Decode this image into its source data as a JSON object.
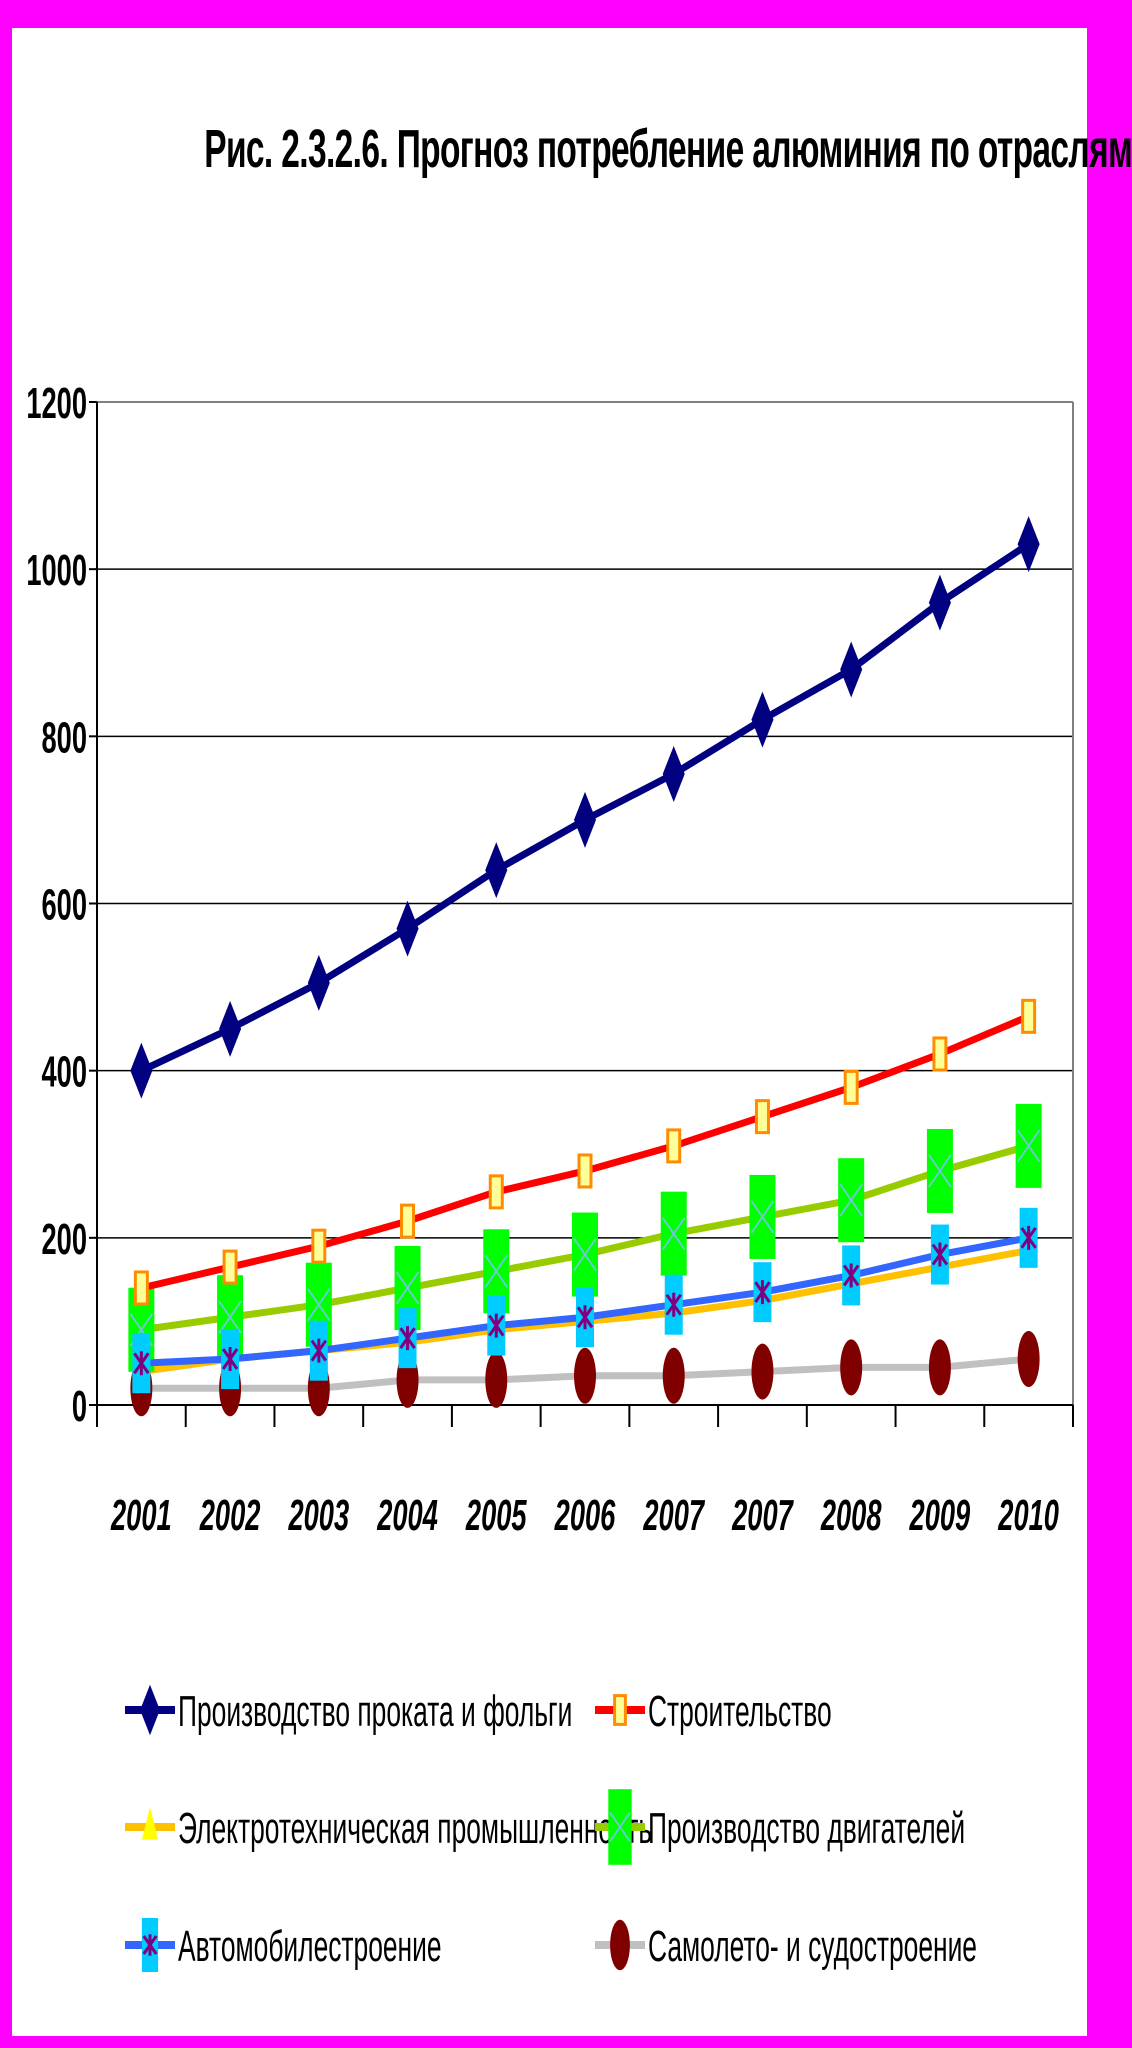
{
  "chart_data": {
    "type": "line",
    "title": "Рис. 2.3.2.6.  Прогноз потребление алюминия по  отраслям",
    "xlabel": "",
    "ylabel": "",
    "ylim": [
      0,
      1200
    ],
    "yticks": [
      "0",
      "200",
      "400",
      "600",
      "800",
      "1000",
      "1200"
    ],
    "categories": [
      "2001",
      "2002",
      "2003",
      "2004",
      "2005",
      "2006",
      "2007",
      "2007",
      "2008",
      "2009",
      "2010"
    ],
    "grid": true,
    "legend_position": "bottom",
    "series": [
      {
        "name": "Производство проката и фольги",
        "color": "#000080",
        "marker": "diamond",
        "values": [
          400,
          450,
          505,
          570,
          640,
          700,
          755,
          820,
          880,
          960,
          1030
        ]
      },
      {
        "name": "Строительство",
        "color": "#ff0000",
        "marker": "square-orange",
        "values": [
          140,
          165,
          190,
          220,
          255,
          280,
          310,
          345,
          380,
          420,
          465
        ]
      },
      {
        "name": "Электротехническая промышленность",
        "color": "#ffc000",
        "marker": "triangle",
        "values": [
          40,
          55,
          65,
          75,
          90,
          100,
          110,
          125,
          145,
          165,
          185
        ]
      },
      {
        "name": "Производство двигателей",
        "color": "#99cc00",
        "marker": "green-box-x",
        "values": [
          90,
          105,
          120,
          140,
          160,
          180,
          205,
          225,
          245,
          280,
          310
        ]
      },
      {
        "name": "Автомобилестроение",
        "color": "#3366ff",
        "marker": "cyan-box-star",
        "values": [
          50,
          55,
          65,
          80,
          95,
          105,
          120,
          135,
          155,
          180,
          200
        ]
      },
      {
        "name": "Самолето- и судостроение",
        "color": "#c0c0c0",
        "marker": "dark-red-ellipse",
        "values": [
          20,
          20,
          20,
          30,
          30,
          35,
          35,
          40,
          45,
          45,
          55
        ]
      }
    ]
  }
}
